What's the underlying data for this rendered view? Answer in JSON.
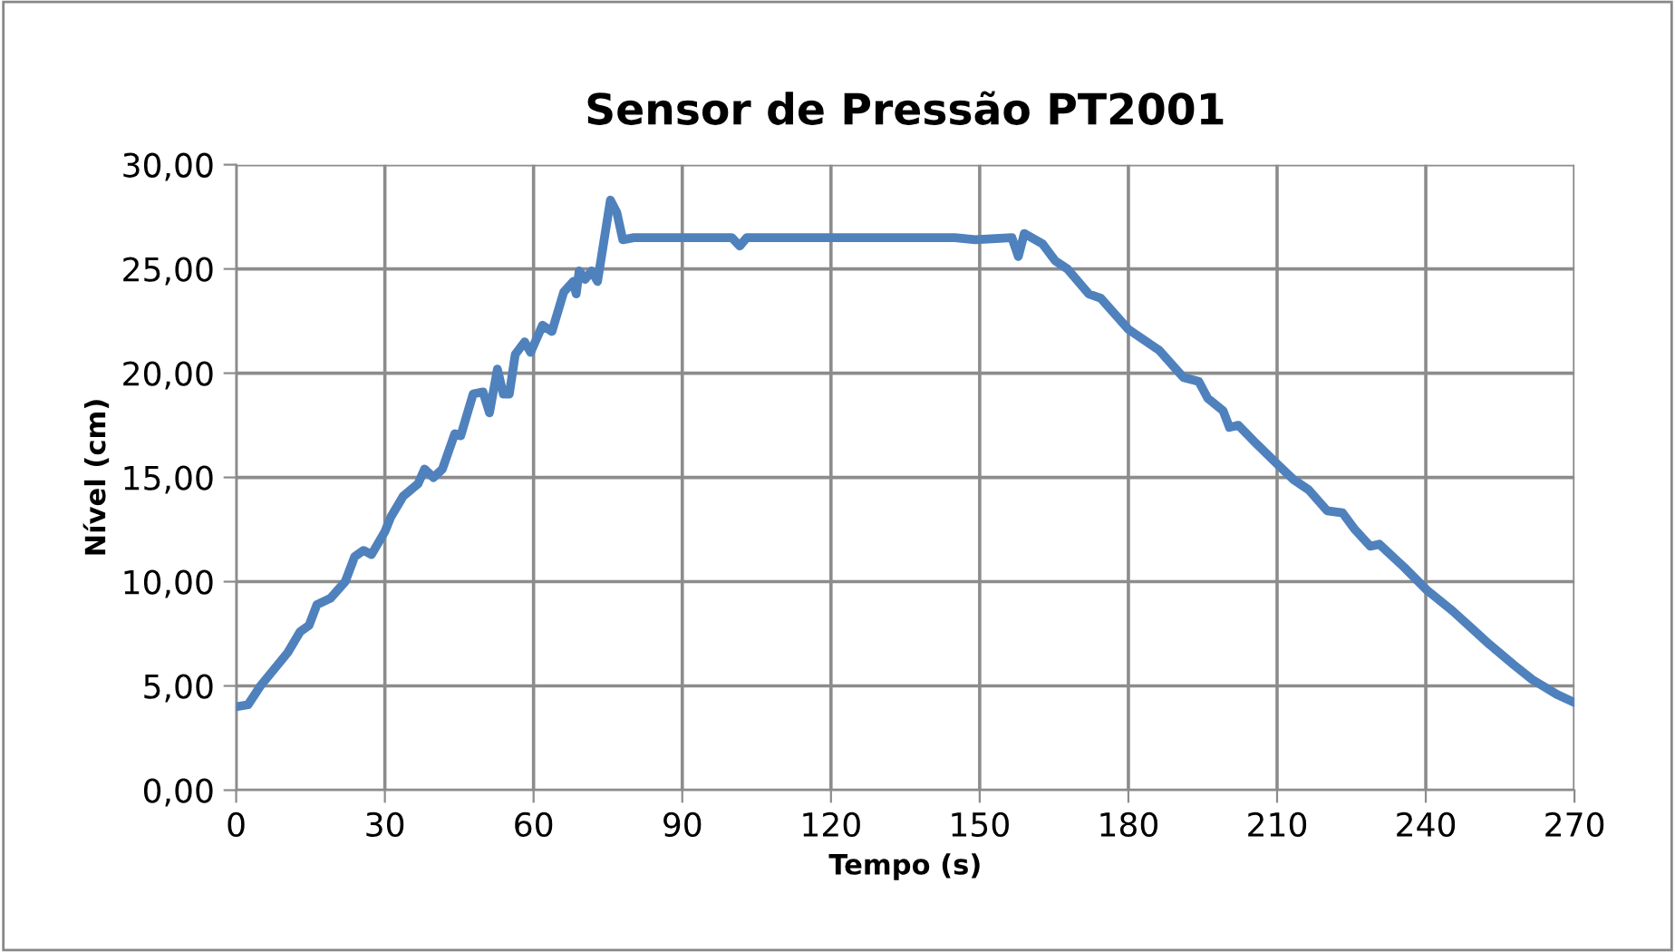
{
  "chart_data": {
    "type": "line",
    "title": "Sensor de Pressão PT2001",
    "xlabel": "Tempo (s)",
    "ylabel": "Nível (cm)",
    "xlim": [
      0,
      270
    ],
    "xticks": [
      0,
      30,
      60,
      90,
      120,
      150,
      180,
      210,
      240,
      270
    ],
    "ylim": [
      0,
      30
    ],
    "yticks": [
      {
        "value": 0,
        "label": "0,00"
      },
      {
        "value": 5,
        "label": "5,00"
      },
      {
        "value": 10,
        "label": "10,00"
      },
      {
        "value": 15,
        "label": "15,00"
      },
      {
        "value": 20,
        "label": "20,00"
      },
      {
        "value": 25,
        "label": "25,00"
      },
      {
        "value": 30,
        "label": "30,00"
      }
    ],
    "grid": true,
    "legend": false,
    "marker": "none",
    "line_style": "solid",
    "series": [
      {
        "color": "#4f81bd",
        "x": [
          0,
          2.4,
          4.9,
          10.4,
          12.9,
          14.7,
          16.3,
          19.0,
          22.0,
          23.9,
          25.7,
          27.3,
          30.0,
          31.2,
          33.7,
          36.7,
          38.0,
          39.8,
          41.6,
          44.1,
          45.3,
          47.8,
          49.8,
          51.1,
          52.7,
          53.9,
          55.1,
          56.3,
          58.2,
          59.4,
          61.8,
          63.7,
          66.1,
          68.0,
          68.6,
          69.2,
          70.4,
          71.7,
          72.9,
          75.5,
          76.8,
          78.0,
          80.2,
          90,
          100,
          101.6,
          103,
          115,
          130,
          145,
          149.1,
          156.5,
          157.8,
          159.0,
          162.7,
          165.2,
          167.7,
          172.0,
          174.4,
          180,
          186.2,
          191.1,
          194.2,
          196.0,
          199.1,
          200.4,
          202.2,
          205.9,
          210.2,
          213.3,
          216.4,
          220.1,
          223.2,
          225.7,
          228.8,
          230.6,
          235.6,
          240.2,
          245.4,
          249.1,
          252.8,
          257.8,
          261.5,
          266.4,
          270
        ],
        "values": [
          4.0,
          4.1,
          5.0,
          6.6,
          7.6,
          7.9,
          8.9,
          9.2,
          10.0,
          11.2,
          11.5,
          11.3,
          12.4,
          13.1,
          14.1,
          14.7,
          15.4,
          15.0,
          15.4,
          17.1,
          17.0,
          19.0,
          19.1,
          18.1,
          20.2,
          19.0,
          19.0,
          20.9,
          21.5,
          21.0,
          22.3,
          22.0,
          23.9,
          24.4,
          23.8,
          24.9,
          24.5,
          24.9,
          24.4,
          28.3,
          27.7,
          26.4,
          26.5,
          26.5,
          26.5,
          26.1,
          26.5,
          26.5,
          26.5,
          26.5,
          26.4,
          26.5,
          25.6,
          26.7,
          26.2,
          25.4,
          25.0,
          23.8,
          23.6,
          22.1,
          21.1,
          19.8,
          19.6,
          18.8,
          18.2,
          17.4,
          17.5,
          16.6,
          15.6,
          14.9,
          14.4,
          13.4,
          13.3,
          12.5,
          11.7,
          11.8,
          10.7,
          9.6,
          8.6,
          7.8,
          7.0,
          6.0,
          5.3,
          4.6,
          4.2
        ]
      }
    ]
  }
}
